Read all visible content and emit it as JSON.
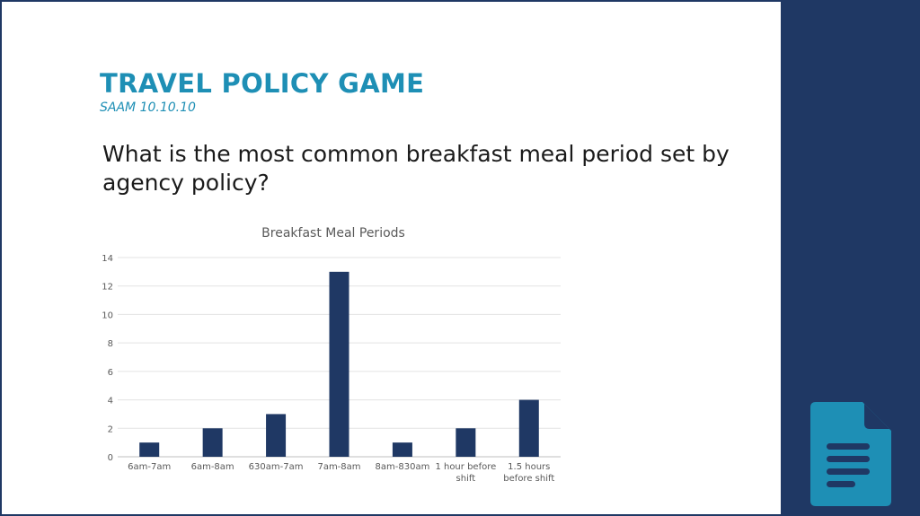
{
  "slide": {
    "title": "TRAVEL POLICY GAME",
    "subtitle": "SAAM 10.10.10",
    "question": "What is the most common breakfast meal period set by agency policy?"
  },
  "colors": {
    "title": "#1e8fb5",
    "bar": "#1f3864",
    "side_panel": "#1f3864",
    "icon": "#1e8fb5"
  },
  "icons": {
    "document": "document-icon"
  },
  "chart_data": {
    "type": "bar",
    "title": "Breakfast Meal Periods",
    "categories": [
      "6am-7am",
      "6am-8am",
      "630am-7am",
      "7am-8am",
      "8am-830am",
      "1 hour before shift",
      "1.5 hours before shift"
    ],
    "category_lines": [
      [
        "6am-7am"
      ],
      [
        "6am-8am"
      ],
      [
        "630am-7am"
      ],
      [
        "7am-8am"
      ],
      [
        "8am-830am"
      ],
      [
        "1 hour before",
        "shift"
      ],
      [
        "1.5 hours",
        "before shift"
      ]
    ],
    "values": [
      1,
      2,
      3,
      13,
      1,
      2,
      4
    ],
    "yticks": [
      0,
      2,
      4,
      6,
      8,
      10,
      12,
      14
    ],
    "ylim": [
      0,
      14
    ],
    "grid": true,
    "legend": "none",
    "xlabel": "",
    "ylabel": ""
  }
}
